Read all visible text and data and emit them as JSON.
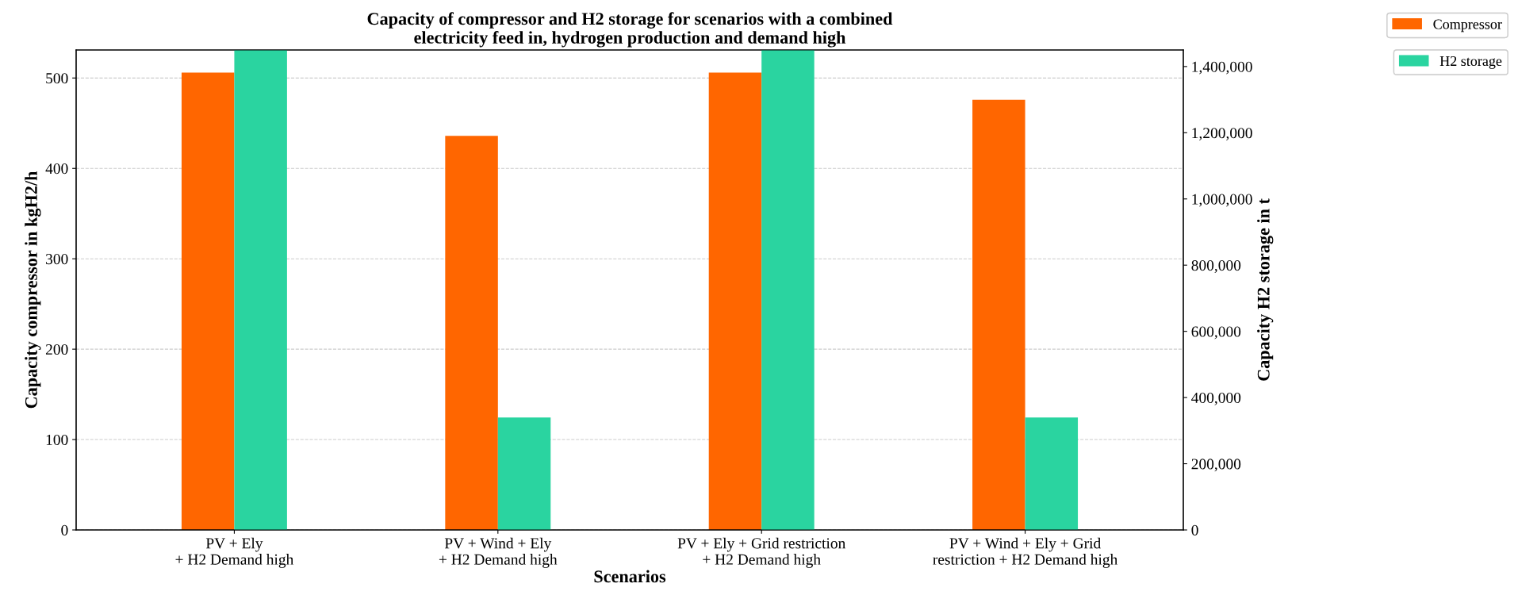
{
  "chart_data": {
    "type": "bar",
    "title": "Capacity of compressor and H2 storage for scenarios with a combined\nelectricity feed in, hydrogen production and demand high",
    "xlabel": "Scenarios",
    "ylabel": "Capacity compressor in kgH2/h",
    "y2label": "Capacity H2 storage in t",
    "categories": [
      "PV + Ely\n+ H2 Demand high",
      "PV + Wind + Ely\n+ H2 Demand high",
      "PV + Ely + Grid restriction\n+ H2 Demand high",
      "PV + Wind + Ely + Grid\nrestriction + H2 Demand high"
    ],
    "series": [
      {
        "name": "Compressor",
        "color": "#ff6600",
        "values": [
          506,
          436,
          506,
          476
        ]
      },
      {
        "name": "H2 storage",
        "color": "#2ad4a0",
        "axis": "y2",
        "values": [
          1450000,
          340000,
          1450000,
          340000
        ]
      }
    ],
    "ylim": [
      0,
      531
    ],
    "yticks": [
      0,
      100,
      200,
      300,
      400,
      500
    ],
    "y2lim": [
      0,
      1450000
    ],
    "y2ticks": [
      0,
      {
        "value": 200000,
        "label": "200,000"
      },
      {
        "value": 400000,
        "label": "400,000"
      },
      {
        "value": 600000,
        "label": "600,000"
      },
      {
        "value": 800000,
        "label": "800,000"
      },
      {
        "value": 1000000,
        "label": "1,000,000"
      },
      {
        "value": 1200000,
        "label": "1,200,000"
      },
      {
        "value": 1400000,
        "label": "1,400,000"
      }
    ],
    "grid": "y",
    "legend": "top right"
  }
}
